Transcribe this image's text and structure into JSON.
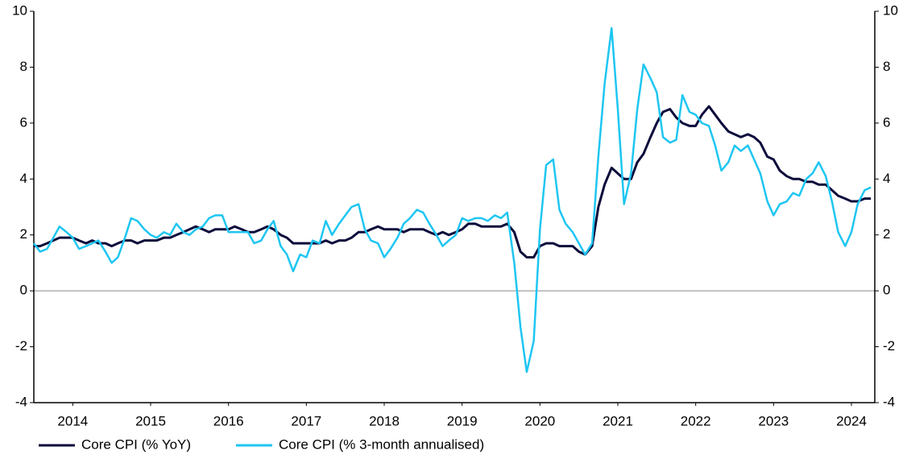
{
  "chart_data": {
    "type": "line",
    "xlim": [
      2014,
      2024.8
    ],
    "xticks": [
      {
        "value": 2014.5,
        "label": "2014"
      },
      {
        "value": 2015.5,
        "label": "2015"
      },
      {
        "value": 2016.5,
        "label": "2016"
      },
      {
        "value": 2017.5,
        "label": "2017"
      },
      {
        "value": 2018.5,
        "label": "2018"
      },
      {
        "value": 2019.5,
        "label": "2019"
      },
      {
        "value": 2020.5,
        "label": "2020"
      },
      {
        "value": 2021.5,
        "label": "2021"
      },
      {
        "value": 2022.5,
        "label": "2022"
      },
      {
        "value": 2023.5,
        "label": "2023"
      },
      {
        "value": 2024.5,
        "label": "2024"
      }
    ],
    "ylim": [
      -4,
      10
    ],
    "yticks": [
      -4,
      -2,
      0,
      2,
      4,
      6,
      8,
      10
    ],
    "y2lim": [
      -4,
      10
    ],
    "y2ticks": [
      -4,
      -2,
      0,
      2,
      4,
      6,
      8,
      10
    ],
    "x": [
      2014.0,
      2014.08,
      2014.17,
      2014.25,
      2014.33,
      2014.42,
      2014.5,
      2014.58,
      2014.67,
      2014.75,
      2014.83,
      2014.92,
      2015.0,
      2015.08,
      2015.17,
      2015.25,
      2015.33,
      2015.42,
      2015.5,
      2015.58,
      2015.67,
      2015.75,
      2015.83,
      2015.92,
      2016.0,
      2016.08,
      2016.17,
      2016.25,
      2016.33,
      2016.42,
      2016.5,
      2016.58,
      2016.67,
      2016.75,
      2016.83,
      2016.92,
      2017.0,
      2017.08,
      2017.17,
      2017.25,
      2017.33,
      2017.42,
      2017.5,
      2017.58,
      2017.67,
      2017.75,
      2017.83,
      2017.92,
      2018.0,
      2018.08,
      2018.17,
      2018.25,
      2018.33,
      2018.42,
      2018.5,
      2018.58,
      2018.67,
      2018.75,
      2018.83,
      2018.92,
      2019.0,
      2019.08,
      2019.17,
      2019.25,
      2019.33,
      2019.42,
      2019.5,
      2019.58,
      2019.67,
      2019.75,
      2019.83,
      2019.92,
      2020.0,
      2020.08,
      2020.17,
      2020.25,
      2020.33,
      2020.42,
      2020.5,
      2020.58,
      2020.67,
      2020.75,
      2020.83,
      2020.92,
      2021.0,
      2021.08,
      2021.17,
      2021.25,
      2021.33,
      2021.42,
      2021.5,
      2021.58,
      2021.67,
      2021.75,
      2021.83,
      2021.92,
      2022.0,
      2022.08,
      2022.17,
      2022.25,
      2022.33,
      2022.42,
      2022.5,
      2022.58,
      2022.67,
      2022.75,
      2022.83,
      2022.92,
      2023.0,
      2023.08,
      2023.17,
      2023.25,
      2023.33,
      2023.42,
      2023.5,
      2023.58,
      2023.67,
      2023.75,
      2023.83,
      2023.92,
      2024.0,
      2024.08,
      2024.17,
      2024.25,
      2024.33,
      2024.42,
      2024.5,
      2024.58,
      2024.67,
      2024.75
    ],
    "series": [
      {
        "name": "Core CPI (% YoY)",
        "color": "#0b0b3b",
        "values": [
          1.6,
          1.6,
          1.7,
          1.8,
          1.9,
          1.9,
          1.9,
          1.8,
          1.7,
          1.8,
          1.7,
          1.7,
          1.6,
          1.7,
          1.8,
          1.8,
          1.7,
          1.8,
          1.8,
          1.8,
          1.9,
          1.9,
          2.0,
          2.1,
          2.2,
          2.3,
          2.2,
          2.1,
          2.2,
          2.2,
          2.2,
          2.3,
          2.2,
          2.1,
          2.1,
          2.2,
          2.3,
          2.2,
          2.0,
          1.9,
          1.7,
          1.7,
          1.7,
          1.7,
          1.7,
          1.8,
          1.7,
          1.8,
          1.8,
          1.9,
          2.1,
          2.1,
          2.2,
          2.3,
          2.2,
          2.2,
          2.2,
          2.1,
          2.2,
          2.2,
          2.2,
          2.1,
          2.0,
          2.1,
          2.0,
          2.1,
          2.2,
          2.4,
          2.4,
          2.3,
          2.3,
          2.3,
          2.3,
          2.4,
          2.1,
          1.4,
          1.2,
          1.2,
          1.6,
          1.7,
          1.7,
          1.6,
          1.6,
          1.6,
          1.4,
          1.3,
          1.6,
          3.0,
          3.8,
          4.4,
          4.2,
          4.0,
          4.0,
          4.6,
          4.9,
          5.5,
          6.0,
          6.4,
          6.5,
          6.2,
          6.0,
          5.9,
          5.9,
          6.3,
          6.6,
          6.3,
          6.0,
          5.7,
          5.6,
          5.5,
          5.6,
          5.5,
          5.3,
          4.8,
          4.7,
          4.3,
          4.1,
          4.0,
          4.0,
          3.9,
          3.9,
          3.8,
          3.8,
          3.6,
          3.4,
          3.3,
          3.2,
          3.2,
          3.3,
          3.3
        ]
      },
      {
        "name": "Core CPI (% 3-month annualised)",
        "color": "#1ec6f2",
        "values": [
          1.7,
          1.4,
          1.5,
          1.9,
          2.3,
          2.1,
          1.9,
          1.5,
          1.6,
          1.7,
          1.8,
          1.4,
          1.0,
          1.2,
          1.9,
          2.6,
          2.5,
          2.2,
          2.0,
          1.9,
          2.1,
          2.0,
          2.4,
          2.1,
          2.0,
          2.2,
          2.3,
          2.6,
          2.7,
          2.7,
          2.1,
          2.1,
          2.1,
          2.1,
          1.7,
          1.8,
          2.2,
          2.5,
          1.6,
          1.3,
          0.7,
          1.3,
          1.2,
          1.8,
          1.7,
          2.5,
          2.0,
          2.4,
          2.7,
          3.0,
          3.1,
          2.2,
          1.8,
          1.7,
          1.2,
          1.5,
          1.9,
          2.4,
          2.6,
          2.9,
          2.8,
          2.4,
          2.0,
          1.6,
          1.8,
          2.0,
          2.6,
          2.5,
          2.6,
          2.6,
          2.5,
          2.7,
          2.6,
          2.8,
          1.0,
          -1.3,
          -2.9,
          -1.8,
          2.2,
          4.5,
          4.7,
          2.9,
          2.4,
          2.1,
          1.7,
          1.3,
          1.7,
          4.8,
          7.4,
          9.4,
          6.5,
          3.1,
          4.2,
          6.5,
          8.1,
          7.6,
          7.1,
          5.5,
          5.3,
          5.4,
          7.0,
          6.4,
          6.3,
          6.0,
          5.9,
          5.2,
          4.3,
          4.6,
          5.2,
          5.0,
          5.2,
          4.7,
          4.2,
          3.2,
          2.7,
          3.1,
          3.2,
          3.5,
          3.4,
          4.0,
          4.2,
          4.6,
          4.1,
          3.2,
          2.1,
          1.6,
          2.1,
          3.1,
          3.6,
          3.7
        ]
      }
    ]
  }
}
